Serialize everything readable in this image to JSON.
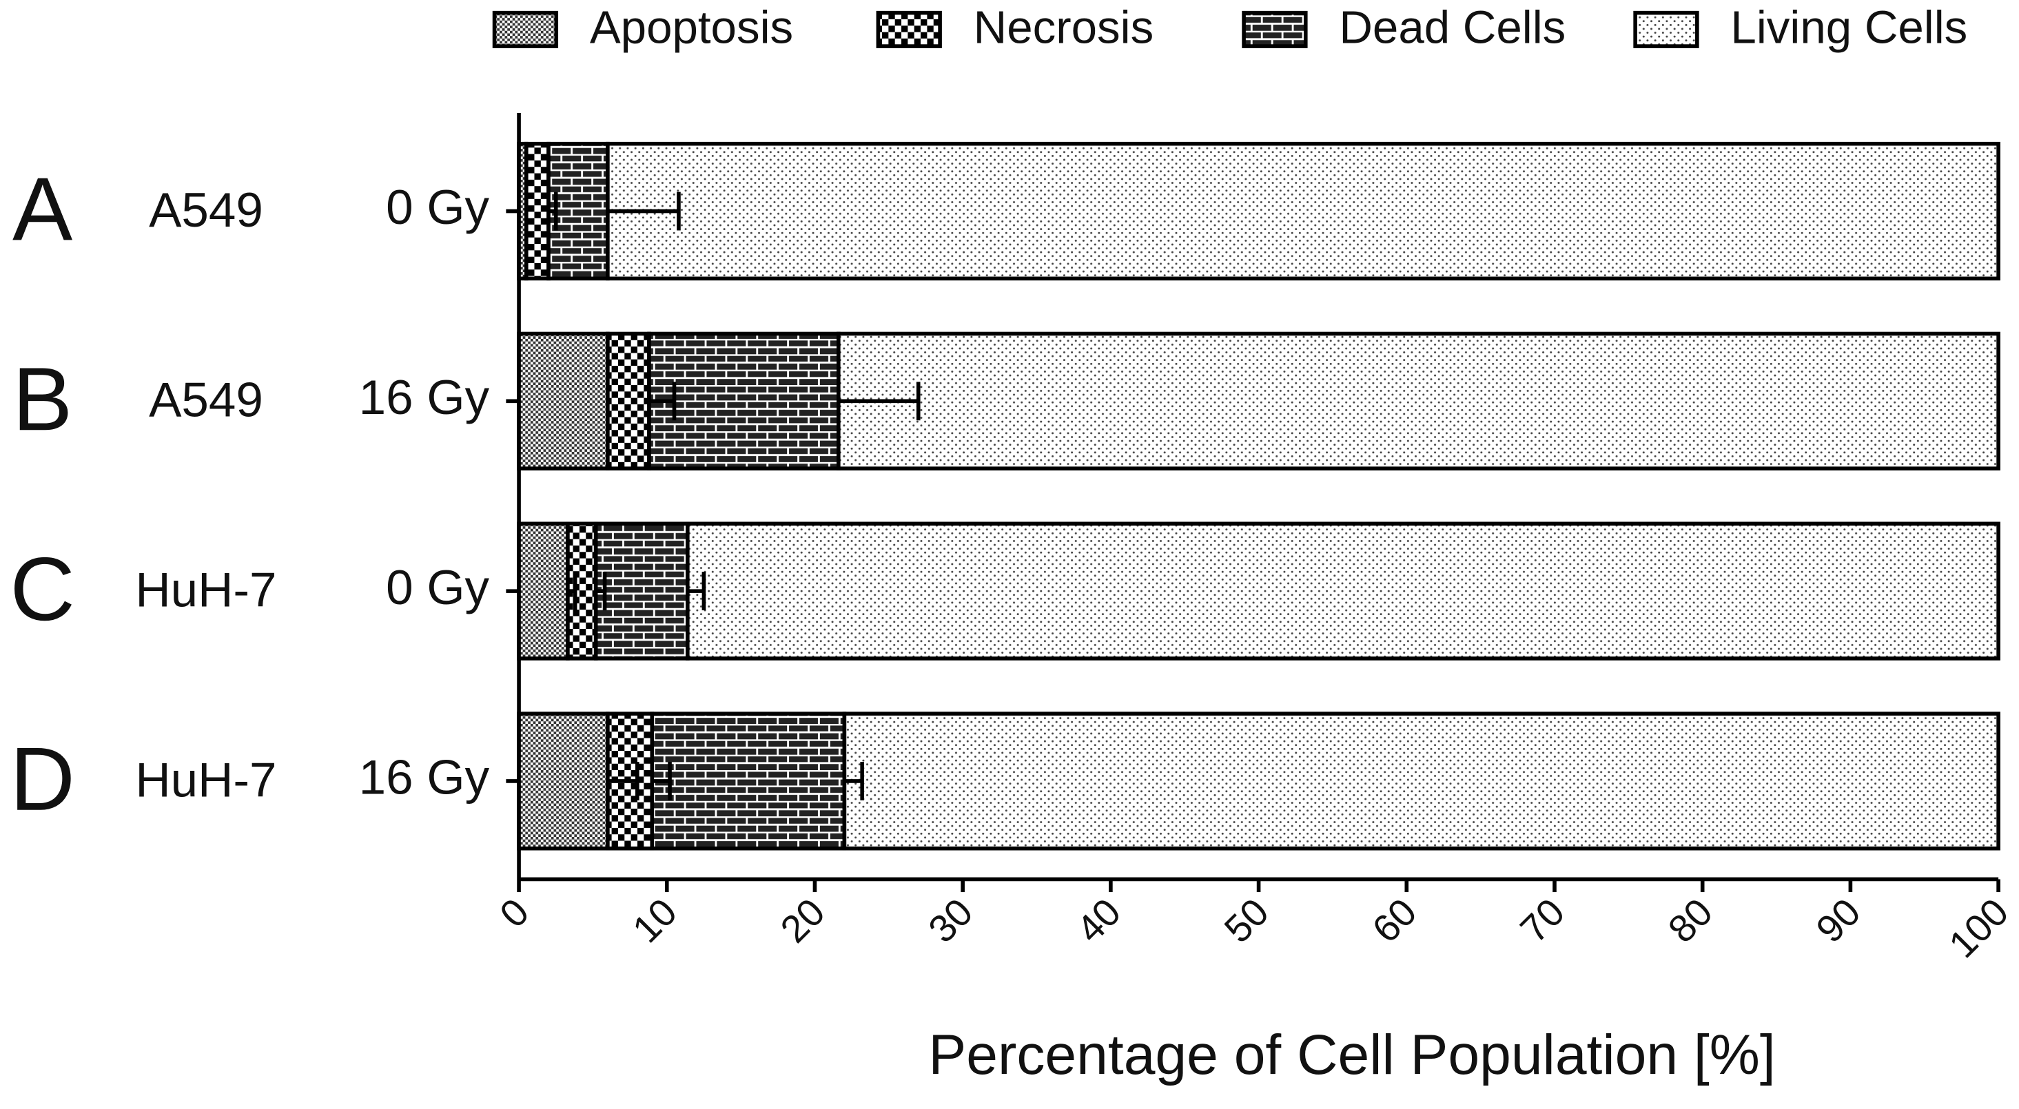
{
  "chart_data": {
    "type": "stacked-bar-horizontal",
    "categories": [
      "A",
      "B",
      "C",
      "D"
    ],
    "cell_lines": [
      "A549",
      "A549",
      "HuH-7",
      "HuH-7"
    ],
    "doses": [
      "0 Gy",
      "16 Gy",
      "0 Gy",
      "16 Gy"
    ],
    "series": [
      {
        "name": "Apoptosis",
        "color": "#000000",
        "pattern": "fine-checker",
        "values": [
          0.5,
          6,
          3.3,
          6
        ],
        "errors": [
          null,
          null,
          0.5,
          2
        ]
      },
      {
        "name": "Necrosis",
        "color": "#000000",
        "pattern": "checker",
        "values": [
          1.5,
          2.8,
          1.9,
          3
        ],
        "errors": [
          0.5,
          1.7,
          0.6,
          1.2
        ]
      },
      {
        "name": "Dead Cells",
        "color": "#000000",
        "pattern": "brick",
        "values": [
          4,
          12.8,
          6.2,
          13
        ],
        "errors": [
          4.8,
          5.4,
          1.1,
          1.2
        ]
      },
      {
        "name": "Living Cells",
        "color": "#000000",
        "pattern": "dots",
        "values": [
          94,
          78.4,
          88.6,
          78
        ],
        "errors": [
          null,
          null,
          null,
          null
        ]
      }
    ],
    "xlabel": "Percentage of Cell Population [%]",
    "xlim": [
      0,
      100
    ],
    "xticks": [
      0,
      10,
      20,
      30,
      40,
      50,
      60,
      70,
      80,
      90,
      100
    ],
    "legend": "top",
    "grid": false
  }
}
